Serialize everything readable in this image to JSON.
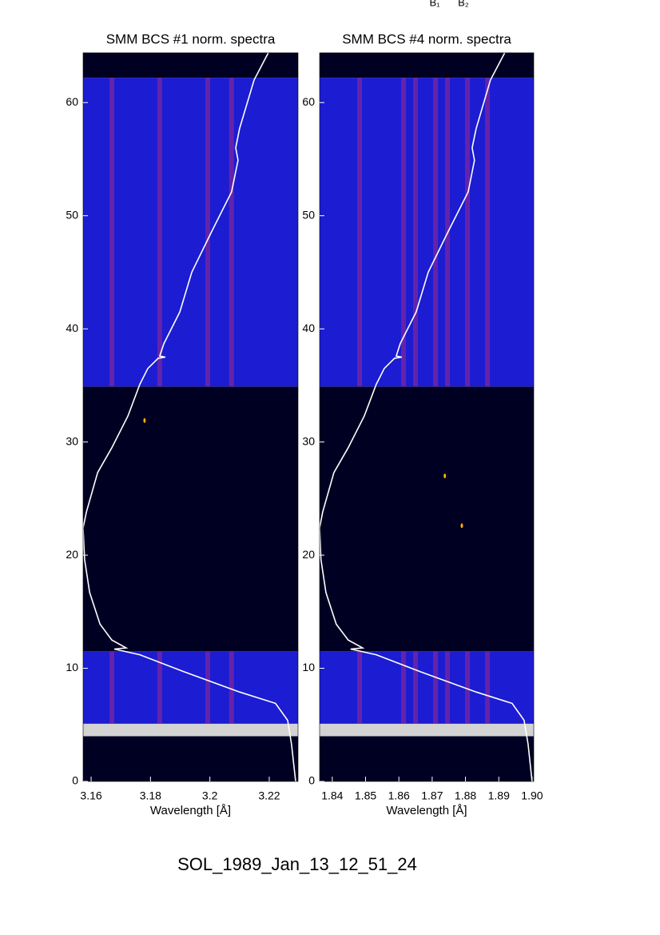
{
  "header": {
    "labels": [
      "B₁",
      "B₂"
    ]
  },
  "footer": "SOL_1989_Jan_13_12_51_24",
  "chart_data": [
    {
      "type": "spectrogram",
      "title": "SMM BCS #1 norm. spectra",
      "xlabel": "Wavelength [Å]",
      "xlim": [
        3.1573,
        3.2297
      ],
      "xticks": [
        3.16,
        3.18,
        3.2,
        3.22
      ],
      "ylim": [
        0,
        64.4
      ],
      "yticks": [
        0,
        10,
        20,
        30,
        40,
        50,
        60
      ],
      "bands": [
        {
          "from": 0,
          "to": 4.0,
          "color": "#000022"
        },
        {
          "from": 4.0,
          "to": 5.1,
          "color": "#d3d3d3"
        },
        {
          "from": 5.1,
          "to": 11.5,
          "color": "#1c1cd2"
        },
        {
          "from": 11.5,
          "to": 34.9,
          "color": "#000022"
        },
        {
          "from": 34.9,
          "to": 62.2,
          "color": "#1c1cd2"
        },
        {
          "from": 62.2,
          "to": 64.4,
          "color": "#000022"
        }
      ],
      "stripe_color": "#a02a8a",
      "stripes": [
        3.167,
        3.1831,
        3.1993,
        3.2073
      ],
      "spots": {
        "x": [
          3.178
        ],
        "t": [
          31.9
        ]
      },
      "curve": {
        "color": "#ffffff",
        "t": [
          64.4,
          62.0,
          57.7,
          56.0,
          54.9,
          52.1,
          48.6,
          45.0,
          41.5,
          38.7,
          37.6,
          37.5,
          37.4,
          36.5,
          35.1,
          32.3,
          29.5,
          27.3,
          23.8,
          22.4,
          19.6,
          16.7,
          13.9,
          12.5,
          11.8,
          11.7,
          11.2,
          9.7,
          7.9,
          6.9,
          5.4,
          3.3,
          0
        ],
        "values": [
          3.2197,
          3.2149,
          3.21,
          3.2087,
          3.2095,
          3.2073,
          3.2006,
          3.1939,
          3.1899,
          3.1845,
          3.1831,
          3.185,
          3.1826,
          3.1791,
          3.1764,
          3.1724,
          3.167,
          3.1622,
          3.1584,
          3.1573,
          3.1578,
          3.1595,
          3.163,
          3.167,
          3.1718,
          3.1678,
          3.1764,
          3.1912,
          3.21,
          3.2221,
          3.2262,
          3.2275,
          3.2289
        ]
      }
    },
    {
      "type": "spectrogram",
      "title": "SMM BCS #4 norm. spectra",
      "xlabel": "Wavelength [Å]",
      "xlim": [
        1.8362,
        1.9005
      ],
      "xticks": [
        1.84,
        1.85,
        1.86,
        1.87,
        1.88,
        1.89,
        {
          "value": 1.9,
          "label": "1.90"
        }
      ],
      "ylim": [
        0,
        64.4
      ],
      "yticks": [
        0,
        10,
        20,
        30,
        40,
        50,
        60
      ],
      "bands": [
        {
          "from": 0,
          "to": 4.0,
          "color": "#000022"
        },
        {
          "from": 4.0,
          "to": 5.1,
          "color": "#d3d3d3"
        },
        {
          "from": 5.1,
          "to": 11.5,
          "color": "#1c1cd2"
        },
        {
          "from": 11.5,
          "to": 34.9,
          "color": "#000022"
        },
        {
          "from": 34.9,
          "to": 62.2,
          "color": "#1c1cd2"
        },
        {
          "from": 62.2,
          "to": 64.4,
          "color": "#000022"
        }
      ],
      "stripe_color": "#a02a8a",
      "stripes": [
        1.8482,
        1.8614,
        1.865,
        1.871,
        1.8746,
        1.8806,
        1.8866
      ],
      "spots": {
        "x": [
          1.8738,
          1.8789
        ],
        "t": [
          27.0,
          22.6
        ]
      },
      "curve": {
        "color": "#ffffff",
        "t": [
          64.4,
          62.0,
          57.7,
          56.0,
          54.9,
          52.1,
          48.6,
          45.0,
          41.5,
          38.7,
          37.6,
          37.5,
          37.4,
          36.5,
          35.1,
          32.3,
          29.5,
          27.3,
          23.8,
          22.4,
          19.6,
          16.7,
          13.9,
          12.5,
          11.8,
          11.7,
          11.2,
          9.7,
          7.9,
          6.9,
          5.4,
          3.3,
          0
        ],
        "values": [
          1.8918,
          1.8875,
          1.8832,
          1.882,
          1.8827,
          1.8808,
          1.8748,
          1.8688,
          1.8652,
          1.8604,
          1.8592,
          1.8609,
          1.8587,
          1.8556,
          1.8532,
          1.8496,
          1.8448,
          1.8405,
          1.8371,
          1.8362,
          1.8366,
          1.8381,
          1.8412,
          1.8448,
          1.8491,
          1.8455,
          1.8532,
          1.8664,
          1.8832,
          1.894,
          1.8976,
          1.8988,
          1.9
        ]
      }
    }
  ]
}
